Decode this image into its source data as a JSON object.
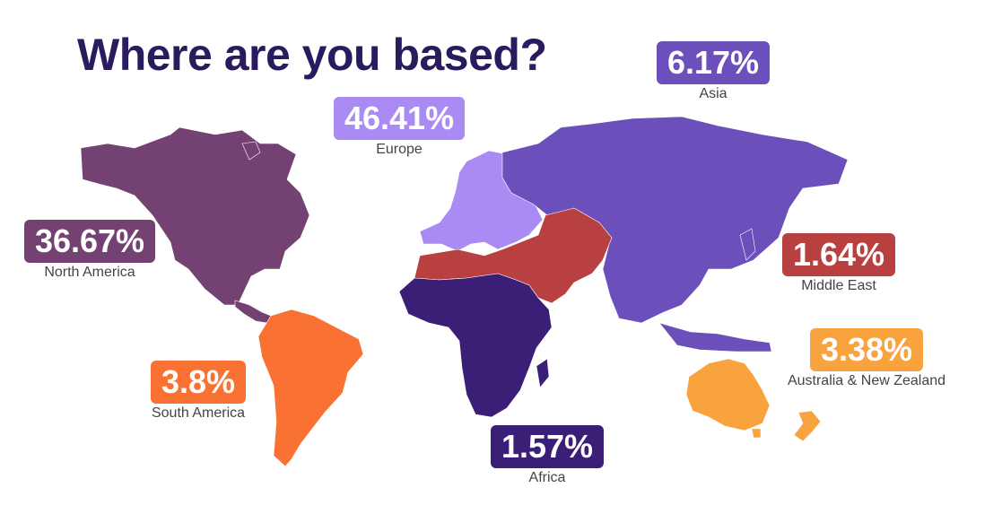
{
  "title": "Where are you based?",
  "colors": {
    "north_america": "#744272",
    "south_america": "#f97233",
    "europe": "#a98bf3",
    "africa": "#3b1e76",
    "middle_east": "#b94040",
    "asia": "#6b4fbb",
    "oceania": "#f9a33f"
  },
  "regions": {
    "north_america": {
      "value": "36.67%",
      "label": "North America"
    },
    "south_america": {
      "value": "3.8%",
      "label": "South America"
    },
    "europe": {
      "value": "46.41%",
      "label": "Europe"
    },
    "africa": {
      "value": "1.57%",
      "label": "Africa"
    },
    "middle_east": {
      "value": "1.64%",
      "label": "Middle East"
    },
    "asia": {
      "value": "6.17%",
      "label": "Asia"
    },
    "oceania": {
      "value": "3.38%",
      "label": "Australia & New Zealand"
    }
  }
}
